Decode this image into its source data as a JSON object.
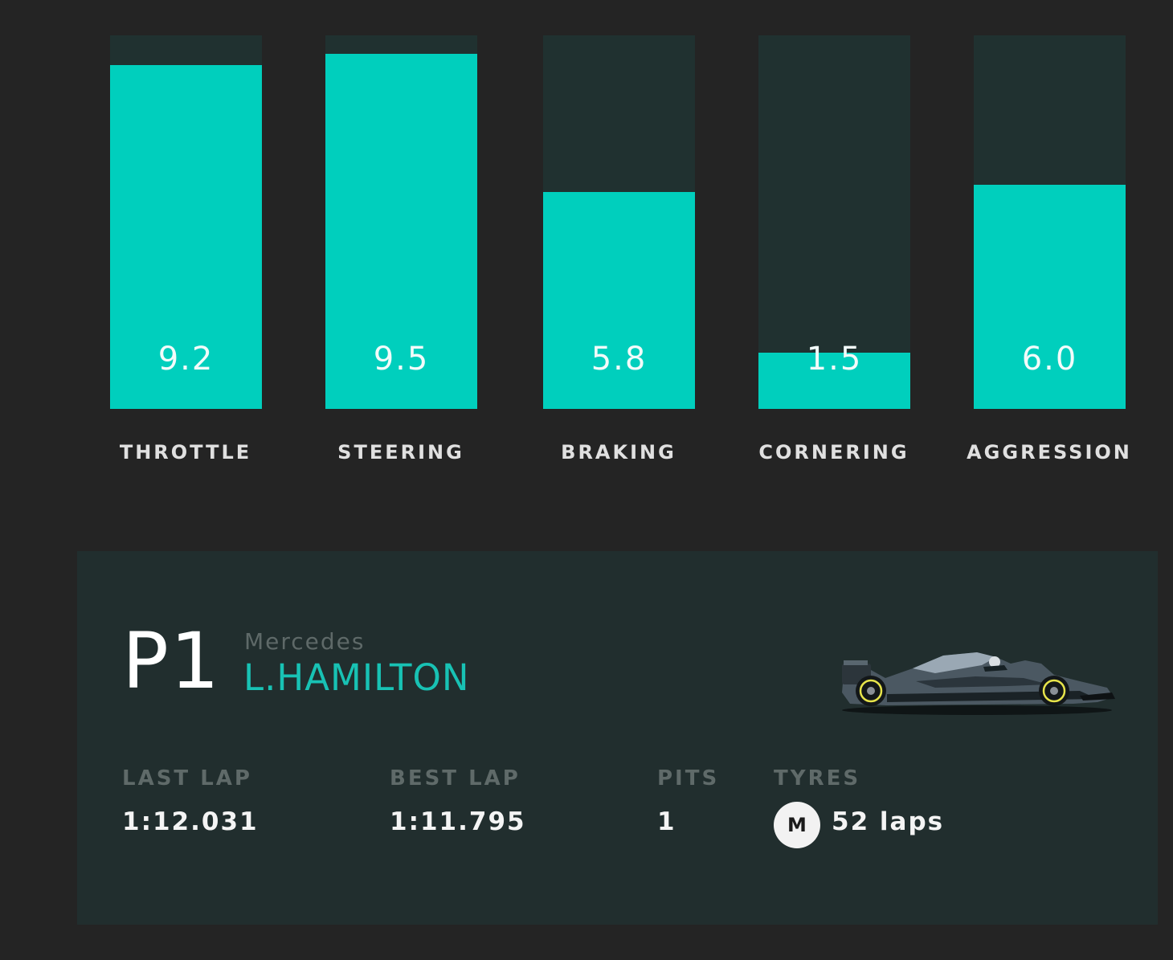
{
  "chart_data": {
    "type": "bar",
    "categories": [
      "THROTTLE",
      "STEERING",
      "BRAKING",
      "CORNERING",
      "AGGRESSION"
    ],
    "values": [
      9.2,
      9.5,
      5.8,
      1.5,
      6.0
    ],
    "value_labels": [
      "9.2",
      "9.5",
      "5.8",
      "1.5",
      "6.0"
    ],
    "ylim": [
      0,
      10
    ],
    "title": "",
    "xlabel": "",
    "ylabel": "",
    "grid": false,
    "colors": {
      "fill": "#00cfbd",
      "track": "#203130"
    }
  },
  "driver": {
    "position": "P1",
    "team": "Mercedes",
    "name": "L.HAMILTON",
    "car_icon": "f1-car-icon"
  },
  "stats": {
    "last_lap_label": "LAST LAP",
    "last_lap_value": "1:12.031",
    "best_lap_label": "BEST LAP",
    "best_lap_value": "1:11.795",
    "pits_label": "PITS",
    "pits_value": "1",
    "tyres_label": "TYRES",
    "tyre_compound": "M",
    "tyre_laps": "52 laps"
  },
  "colors": {
    "background": "#242424",
    "panel": "#212e2e",
    "accent": "#00cfbd",
    "driver_name": "#18c2b4",
    "muted": "#5f6a69"
  }
}
